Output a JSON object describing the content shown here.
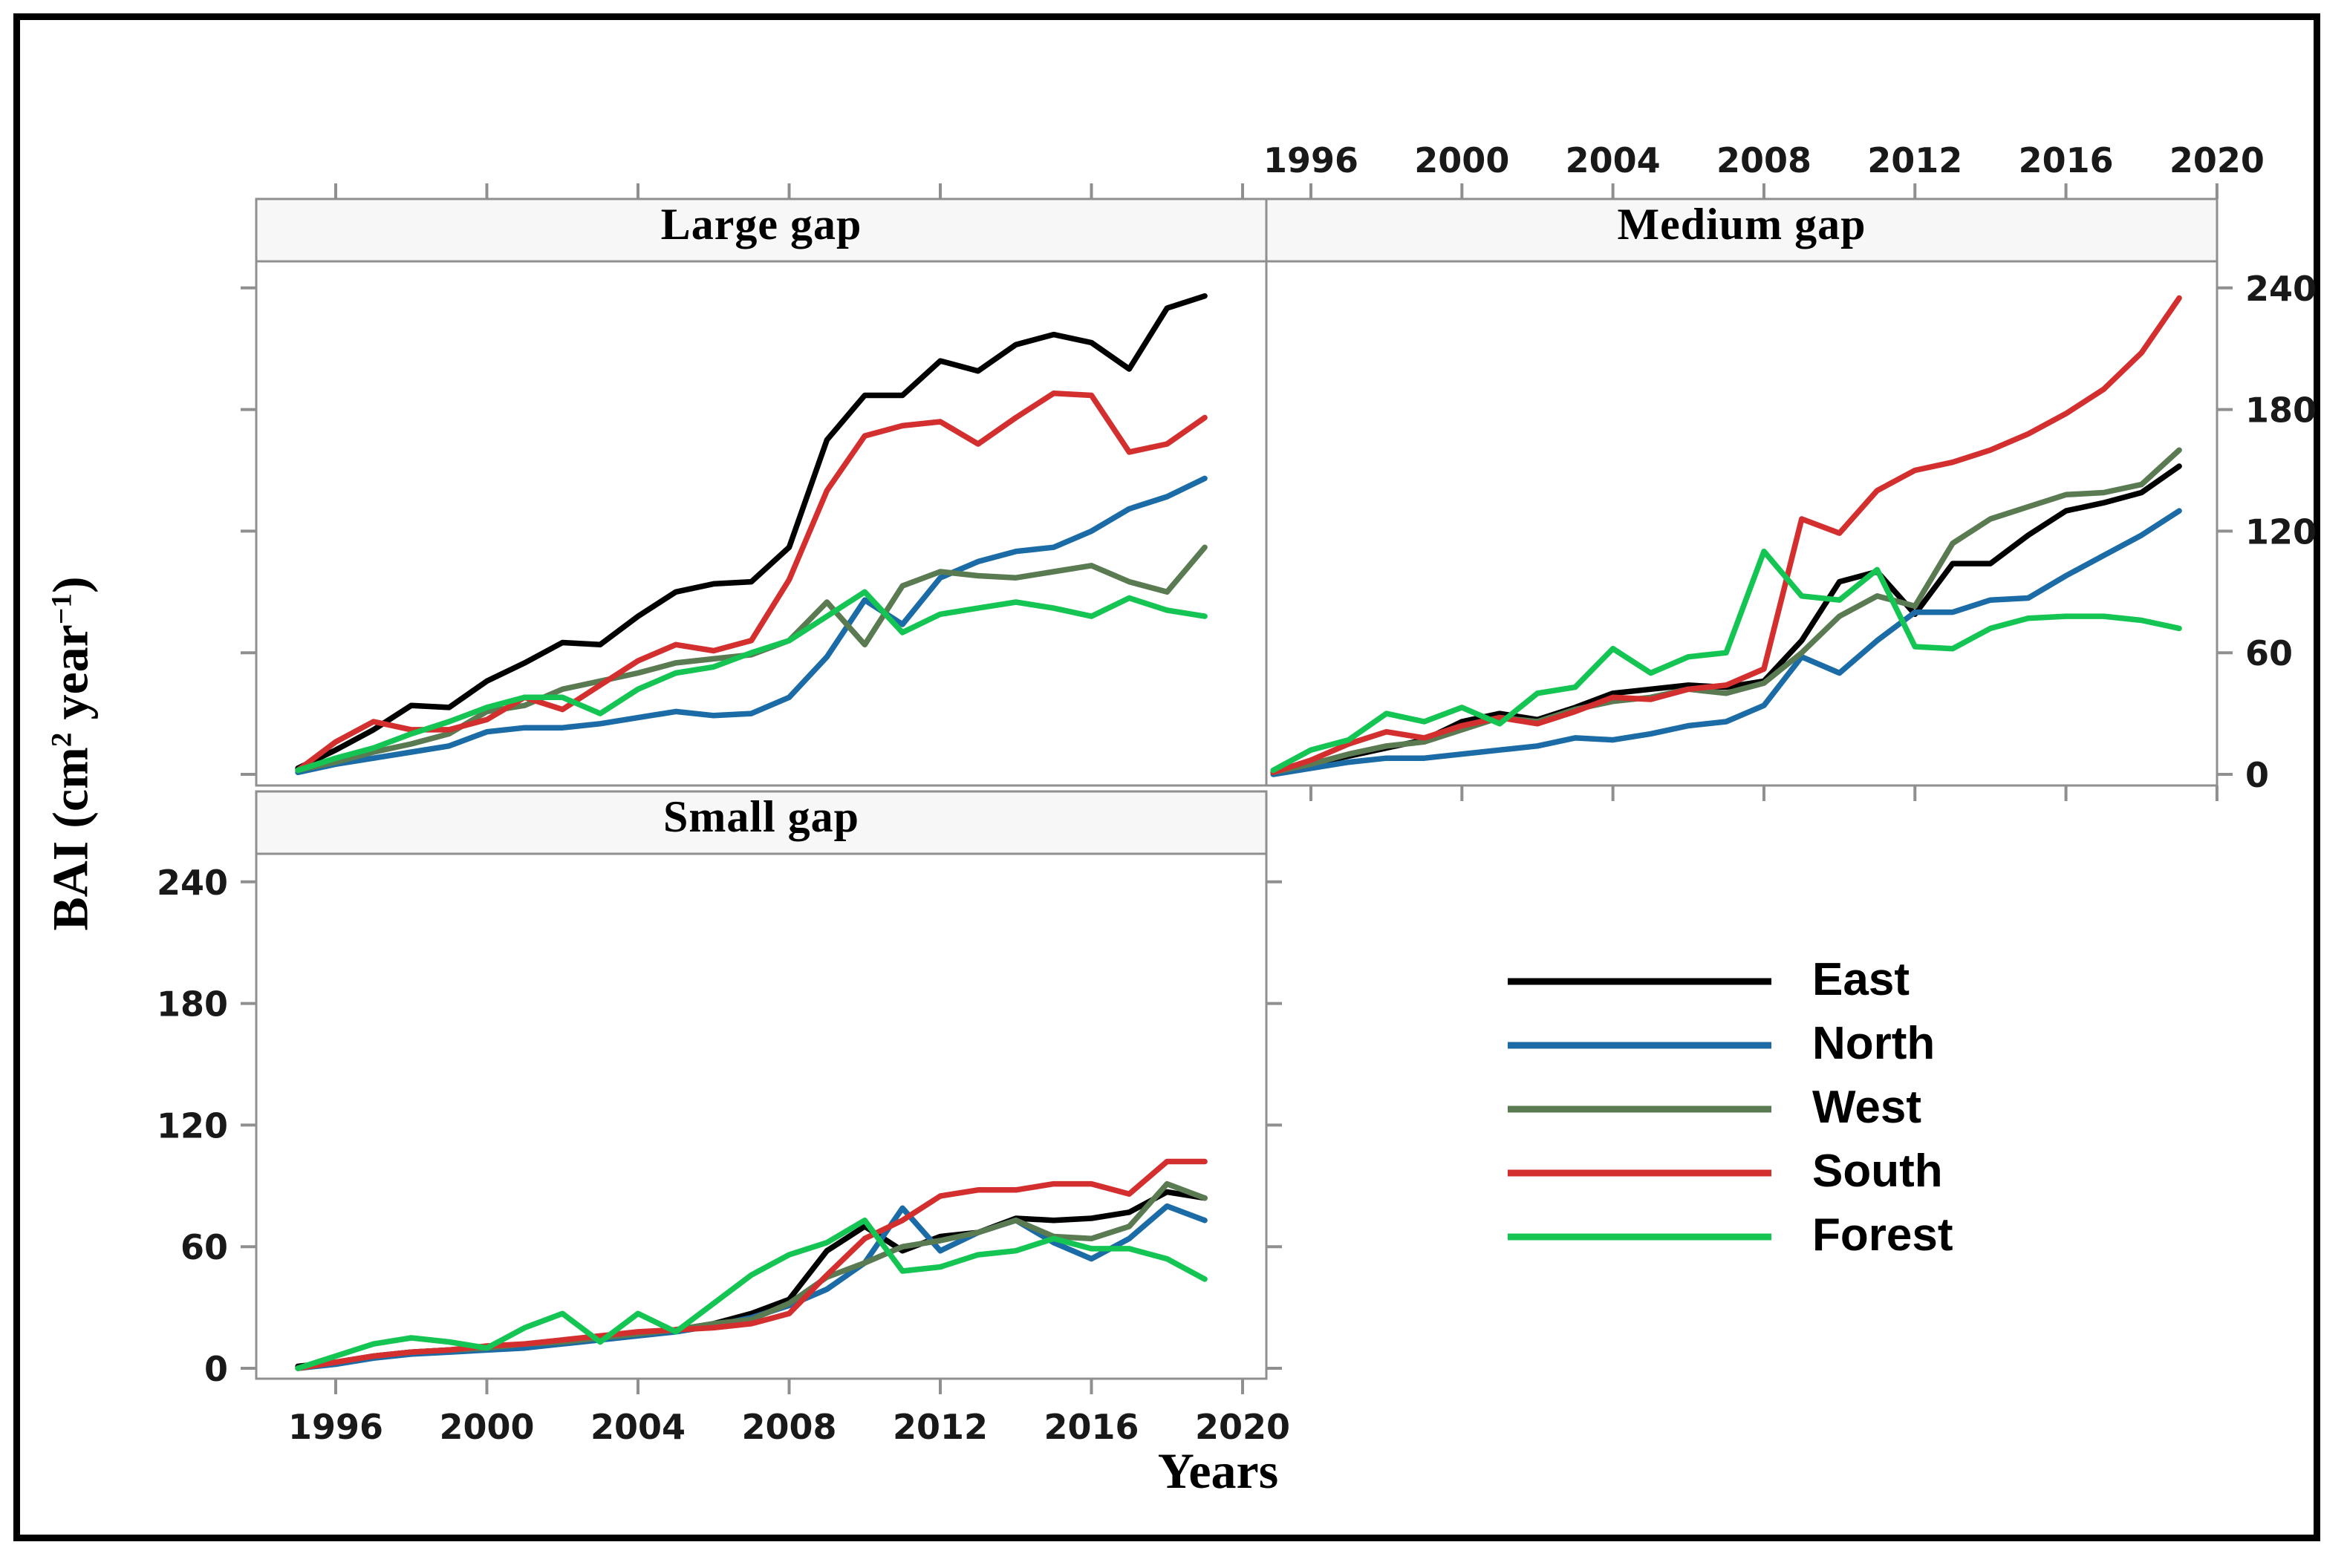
{
  "figure": {
    "xlabel": "Years",
    "ylabel_parts": {
      "p1": "BAI (cm",
      "s1": "2",
      "p2": " year",
      "s2": "−1",
      "p3": ")"
    },
    "colors": {
      "outer_border": "#000000",
      "panel_border": "#8f8f8f",
      "strip_fill": "#f7f7f7",
      "tick": "#8f8f8f",
      "label": "#191919"
    }
  },
  "legend": {
    "items": [
      {
        "label": "East",
        "color": "#000000"
      },
      {
        "label": "North",
        "color": "#1b6ba6"
      },
      {
        "label": "West",
        "color": "#5a7a52"
      },
      {
        "label": "South",
        "color": "#d42f2f"
      },
      {
        "label": "Forest",
        "color": "#14c553"
      }
    ]
  },
  "chart_data": {
    "type": "line",
    "title": "",
    "xlabel": "Years",
    "ylabel": "BAI (cm2 year-1)",
    "grid": false,
    "legend_position": "bottom-right",
    "x": [
      1995,
      1996,
      1997,
      1998,
      1999,
      2000,
      2001,
      2002,
      2003,
      2004,
      2005,
      2006,
      2007,
      2008,
      2009,
      2010,
      2011,
      2012,
      2013,
      2014,
      2015,
      2016,
      2017,
      2018,
      2019
    ],
    "x_ticks": [
      1996,
      2000,
      2004,
      2008,
      2012,
      2016,
      2020
    ],
    "y_ticks": [
      0,
      60,
      120,
      180,
      240
    ],
    "ylim": [
      -8,
      255
    ],
    "series_names": [
      "East",
      "North",
      "West",
      "South",
      "Forest"
    ],
    "series_colors": {
      "East": "#000000",
      "North": "#1b6ba6",
      "West": "#5a7a52",
      "South": "#d42f2f",
      "Forest": "#14c553"
    },
    "panels": [
      {
        "title": "Large gap",
        "series": {
          "East": [
            3,
            12,
            22,
            34,
            33,
            46,
            55,
            65,
            64,
            78,
            90,
            94,
            95,
            112,
            165,
            187,
            187,
            204,
            199,
            212,
            217,
            213,
            200,
            230,
            236
          ],
          "North": [
            1,
            5,
            8,
            11,
            14,
            21,
            23,
            23,
            25,
            28,
            31,
            29,
            30,
            38,
            58,
            86,
            74,
            97,
            105,
            110,
            112,
            120,
            131,
            137,
            146
          ],
          "West": [
            2,
            6,
            11,
            15,
            20,
            31,
            34,
            42,
            46,
            50,
            55,
            57,
            59,
            66,
            85,
            64,
            93,
            100,
            98,
            97,
            100,
            103,
            95,
            90,
            112
          ],
          "South": [
            2,
            16,
            26,
            22,
            22,
            27,
            38,
            32,
            44,
            56,
            64,
            61,
            66,
            96,
            140,
            167,
            172,
            174,
            163,
            176,
            188,
            187,
            159,
            163,
            176
          ],
          "Forest": [
            2,
            8,
            13,
            20,
            26,
            33,
            38,
            38,
            30,
            42,
            50,
            53,
            60,
            66,
            78,
            90,
            70,
            79,
            82,
            85,
            82,
            78,
            87,
            81,
            78
          ]
        }
      },
      {
        "title": "Medium gap",
        "series": {
          "East": [
            1,
            5,
            9,
            13,
            17,
            26,
            30,
            27,
            33,
            40,
            42,
            44,
            43,
            46,
            66,
            95,
            100,
            79,
            104,
            104,
            118,
            130,
            134,
            139,
            152
          ],
          "North": [
            0,
            3,
            6,
            8,
            8,
            10,
            12,
            14,
            18,
            17,
            20,
            24,
            26,
            34,
            58,
            50,
            66,
            80,
            80,
            86,
            87,
            98,
            108,
            118,
            130
          ],
          "West": [
            1,
            5,
            10,
            14,
            16,
            22,
            28,
            26,
            32,
            36,
            38,
            42,
            40,
            45,
            60,
            78,
            88,
            83,
            114,
            126,
            132,
            138,
            139,
            143,
            160
          ],
          "South": [
            1,
            7,
            15,
            21,
            18,
            24,
            28,
            25,
            31,
            38,
            37,
            42,
            44,
            52,
            126,
            119,
            140,
            150,
            154,
            160,
            168,
            178,
            190,
            208,
            235
          ],
          "Forest": [
            2,
            12,
            17,
            30,
            26,
            33,
            25,
            40,
            43,
            62,
            50,
            58,
            60,
            110,
            88,
            86,
            101,
            63,
            62,
            72,
            77,
            78,
            78,
            76,
            72
          ]
        }
      },
      {
        "title": "Small gap",
        "series": {
          "East": [
            1,
            3,
            6,
            8,
            9,
            10,
            11,
            13,
            15,
            17,
            19,
            22,
            27,
            34,
            58,
            70,
            58,
            65,
            67,
            74,
            73,
            74,
            77,
            87,
            84
          ],
          "North": [
            0,
            2,
            5,
            7,
            8,
            9,
            10,
            12,
            14,
            16,
            18,
            21,
            25,
            31,
            39,
            52,
            79,
            58,
            67,
            73,
            62,
            54,
            64,
            80,
            73
          ],
          "West": [
            0,
            3,
            6,
            8,
            9,
            10,
            12,
            13,
            15,
            17,
            19,
            22,
            24,
            32,
            45,
            52,
            60,
            63,
            67,
            73,
            65,
            64,
            70,
            91,
            84
          ],
          "South": [
            0,
            3,
            6,
            8,
            9,
            11,
            12,
            14,
            16,
            18,
            19,
            20,
            22,
            27,
            46,
            64,
            73,
            85,
            88,
            88,
            91,
            91,
            86,
            102,
            102
          ],
          "Forest": [
            0,
            6,
            12,
            15,
            13,
            10,
            20,
            27,
            13,
            27,
            18,
            32,
            46,
            56,
            62,
            73,
            48,
            50,
            56,
            58,
            64,
            59,
            59,
            54,
            44
          ]
        }
      }
    ]
  }
}
